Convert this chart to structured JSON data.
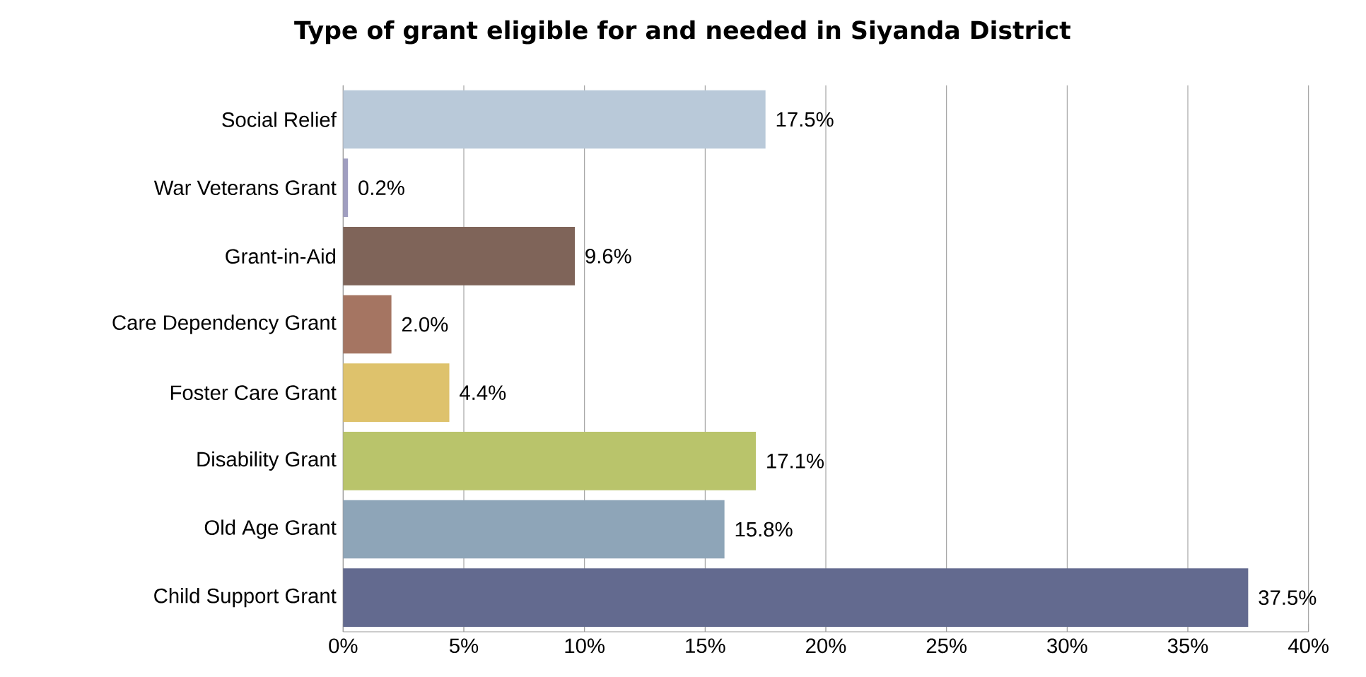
{
  "chart_data": {
    "type": "bar",
    "orientation": "horizontal",
    "title": "Type of grant eligible for and needed in Siyanda District",
    "categories": [
      "Social Relief",
      "War Veterans Grant",
      "Grant-in-Aid",
      "Care Dependency Grant",
      "Foster Care Grant",
      "Disability Grant",
      "Old Age Grant",
      "Child Support Grant"
    ],
    "values": [
      17.5,
      0.2,
      9.6,
      2.0,
      4.4,
      17.1,
      15.8,
      37.5
    ],
    "value_labels": [
      "17.5%",
      "0.2%",
      "9.6%",
      "2.0%",
      "4.4%",
      "17.1%",
      "15.8%",
      "37.5%"
    ],
    "colors": [
      "#b9c9d9",
      "#a09ec0",
      "#7f6459",
      "#a57562",
      "#dec26c",
      "#b9c46b",
      "#8ea5b8",
      "#636a8f"
    ],
    "xlim": [
      0,
      40
    ],
    "xticks": [
      {
        "value": 0,
        "label": "0%"
      },
      {
        "value": 5,
        "label": "5%"
      },
      {
        "value": 10,
        "label": "10%"
      },
      {
        "value": 15,
        "label": "15%"
      },
      {
        "value": 20,
        "label": "20%"
      },
      {
        "value": 25,
        "label": "25%"
      },
      {
        "value": 30,
        "label": "30%"
      },
      {
        "value": 35,
        "label": "35%"
      },
      {
        "value": 40,
        "label": "40%"
      }
    ],
    "grid": "x"
  }
}
